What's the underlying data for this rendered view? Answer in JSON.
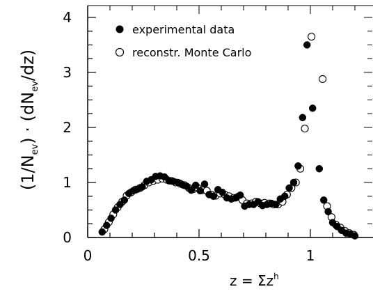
{
  "chart_data": {
    "type": "scatter",
    "xlabel": {
      "prefix": "z = Σz",
      "sup": "h"
    },
    "ylabel": {
      "p1": "(1/N",
      "sub1": "ev",
      "p2": ") · (dN",
      "sub2": "ev",
      "p3": "/dz)"
    },
    "xlim": [
      0,
      1.3
    ],
    "ylim": [
      0,
      4.2
    ],
    "x_ticks": [
      "0",
      "0.5",
      "1"
    ],
    "y_ticks": [
      "0",
      "1",
      "2",
      "3",
      "4"
    ],
    "grid": false,
    "legend_position": "top-left",
    "series": [
      {
        "name": "experimental data",
        "marker": "filled-circle",
        "x": [
          0.065,
          0.085,
          0.105,
          0.125,
          0.145,
          0.165,
          0.185,
          0.205,
          0.225,
          0.245,
          0.265,
          0.285,
          0.305,
          0.325,
          0.345,
          0.365,
          0.385,
          0.405,
          0.425,
          0.445,
          0.465,
          0.485,
          0.505,
          0.525,
          0.545,
          0.565,
          0.585,
          0.605,
          0.625,
          0.645,
          0.665,
          0.685,
          0.705,
          0.725,
          0.745,
          0.765,
          0.785,
          0.805,
          0.825,
          0.845,
          0.865,
          0.885,
          0.905,
          0.925,
          0.945,
          0.965,
          0.985,
          1.01,
          1.04,
          1.06,
          1.08,
          1.1,
          1.12,
          1.14,
          1.16,
          1.18,
          1.2
        ],
        "y": [
          0.1,
          0.22,
          0.35,
          0.5,
          0.6,
          0.68,
          0.8,
          0.85,
          0.88,
          0.92,
          1.02,
          1.05,
          1.11,
          1.12,
          1.1,
          1.03,
          1.02,
          1.0,
          0.96,
          0.93,
          0.86,
          0.95,
          0.85,
          0.97,
          0.78,
          0.75,
          0.87,
          0.82,
          0.72,
          0.7,
          0.72,
          0.77,
          0.57,
          0.6,
          0.6,
          0.65,
          0.58,
          0.6,
          0.62,
          0.6,
          0.7,
          0.75,
          0.9,
          1.0,
          1.3,
          2.18,
          3.5,
          2.35,
          1.25,
          0.68,
          0.47,
          0.27,
          0.2,
          0.13,
          0.08,
          0.06,
          0.03
        ]
      },
      {
        "name": "reconstr. Monte Carlo",
        "marker": "open-circle",
        "x": [
          0.075,
          0.095,
          0.115,
          0.135,
          0.155,
          0.175,
          0.195,
          0.215,
          0.235,
          0.255,
          0.275,
          0.295,
          0.315,
          0.335,
          0.355,
          0.375,
          0.395,
          0.415,
          0.435,
          0.455,
          0.475,
          0.495,
          0.515,
          0.535,
          0.555,
          0.575,
          0.595,
          0.615,
          0.635,
          0.655,
          0.675,
          0.695,
          0.715,
          0.735,
          0.755,
          0.775,
          0.795,
          0.815,
          0.835,
          0.855,
          0.875,
          0.895,
          0.915,
          0.935,
          0.955,
          0.975,
          1.005,
          1.055,
          1.075,
          1.095,
          1.115,
          1.135,
          1.155,
          1.175,
          1.195
        ],
        "y": [
          0.15,
          0.28,
          0.42,
          0.55,
          0.65,
          0.76,
          0.82,
          0.87,
          0.9,
          0.95,
          1.0,
          1.03,
          1.05,
          1.07,
          1.05,
          1.03,
          1.0,
          0.98,
          0.95,
          0.9,
          0.88,
          0.9,
          0.86,
          0.85,
          0.78,
          0.76,
          0.8,
          0.78,
          0.75,
          0.72,
          0.74,
          0.68,
          0.62,
          0.62,
          0.65,
          0.62,
          0.63,
          0.62,
          0.6,
          0.6,
          0.65,
          0.78,
          0.9,
          1.0,
          1.25,
          1.98,
          3.65,
          2.88,
          0.57,
          0.37,
          0.23,
          0.18,
          0.12,
          0.08,
          0.05
        ]
      }
    ]
  }
}
